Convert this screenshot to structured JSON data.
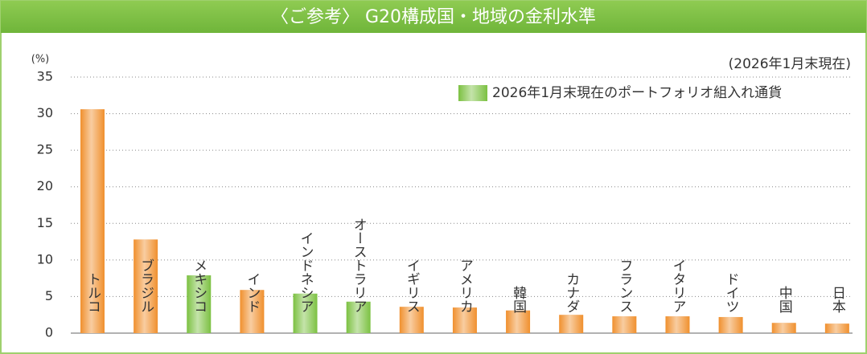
{
  "chart_data": {
    "type": "bar",
    "title": "〈ご参考〉 G20構成国・地域の金利水準",
    "y_label": "(%)",
    "note": "(2026年1月末現在)",
    "legend": {
      "label": "2026年1月末現在のポートフォリオ組入れ通貨",
      "color": "#7cc142"
    },
    "categories": [
      "トルコ",
      "ブラジル",
      "メキシコ",
      "インド",
      "インドネシア",
      "オーストラリア",
      "イギリス",
      "アメリカ",
      "韓国",
      "カナダ",
      "フランス",
      "イタリア",
      "ドイツ",
      "中国",
      "日本"
    ],
    "values": [
      30.6,
      12.8,
      7.9,
      5.9,
      5.4,
      4.3,
      3.6,
      3.5,
      3.1,
      2.5,
      2.3,
      2.3,
      2.2,
      1.4,
      1.3
    ],
    "colors": [
      "#f0902e",
      "#f0902e",
      "#7cc142",
      "#f0902e",
      "#7cc142",
      "#7cc142",
      "#f0902e",
      "#f0902e",
      "#f0902e",
      "#f0902e",
      "#f0902e",
      "#f0902e",
      "#f0902e",
      "#f0902e",
      "#f0902e"
    ],
    "ylim": [
      0,
      35
    ],
    "yticks": [
      0,
      5,
      10,
      15,
      20,
      25,
      30,
      35
    ],
    "grid": true
  }
}
